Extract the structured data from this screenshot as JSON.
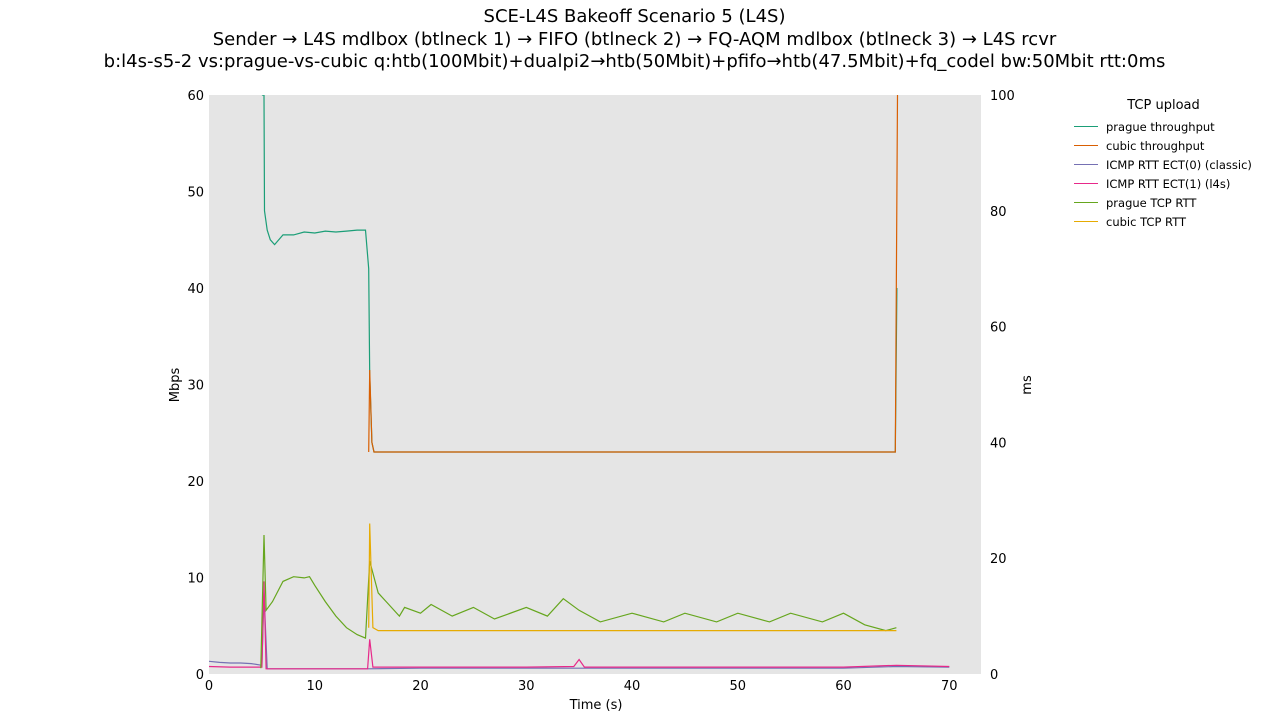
{
  "chart_data": {
    "type": "line",
    "title_lines": [
      "SCE-L4S Bakeoff Scenario 5 (L4S)",
      "Sender → L4S mdlbox (btlneck 1) → FIFO (btlneck 2) → FQ-AQM mdlbox (btlneck 3) → L4S rcvr",
      "b:l4s-s5-2 vs:prague-vs-cubic q:htb(100Mbit)+dualpi2→htb(50Mbit)+pfifo→htb(47.5Mbit)+fq_codel bw:50Mbit rtt:0ms"
    ],
    "xlabel": "Time (s)",
    "ylabel_left": "Mbps",
    "ylabel_right": "ms",
    "xlim": [
      0,
      73
    ],
    "ylim_left": [
      0,
      60
    ],
    "ylim_right": [
      0,
      100
    ],
    "xticks": [
      "0",
      "10",
      "20",
      "30",
      "40",
      "50",
      "60",
      "70"
    ],
    "yticks_left": [
      "0",
      "10",
      "20",
      "30",
      "40",
      "50",
      "60"
    ],
    "yticks_right": [
      "0",
      "20",
      "40",
      "60",
      "80",
      "100"
    ],
    "grid": false,
    "background": "#e5e5e5",
    "legend_title": "TCP upload",
    "legend_position": "outside-top-right",
    "series": [
      {
        "name": "prague throughput",
        "axis": "left",
        "color": "#1b9e77",
        "points": [
          [
            5.0,
            60
          ],
          [
            5.2,
            60
          ],
          [
            5.25,
            48
          ],
          [
            5.5,
            46
          ],
          [
            5.8,
            45
          ],
          [
            6.2,
            44.5
          ],
          [
            7,
            45.5
          ],
          [
            8,
            45.5
          ],
          [
            9,
            45.8
          ],
          [
            10,
            45.7
          ],
          [
            11,
            45.9
          ],
          [
            12,
            45.8
          ],
          [
            13,
            45.9
          ],
          [
            14,
            46
          ],
          [
            14.8,
            46
          ],
          [
            15.1,
            42
          ],
          [
            15.2,
            31
          ],
          [
            15.4,
            24
          ],
          [
            15.6,
            23
          ],
          [
            20,
            23
          ],
          [
            25,
            23
          ],
          [
            30,
            23
          ],
          [
            35,
            23
          ],
          [
            40,
            23
          ],
          [
            45,
            23
          ],
          [
            50,
            23
          ],
          [
            55,
            23
          ],
          [
            60,
            23
          ],
          [
            64.9,
            23
          ],
          [
            65.05,
            40
          ]
        ]
      },
      {
        "name": "cubic throughput",
        "axis": "left",
        "color": "#d95f02",
        "points": [
          [
            15.1,
            23
          ],
          [
            15.2,
            31.5
          ],
          [
            15.4,
            24
          ],
          [
            15.6,
            23
          ],
          [
            20,
            23
          ],
          [
            25,
            23
          ],
          [
            30,
            23
          ],
          [
            35,
            23
          ],
          [
            40,
            23
          ],
          [
            45,
            23
          ],
          [
            50,
            23
          ],
          [
            55,
            23
          ],
          [
            60,
            23
          ],
          [
            64.9,
            23
          ],
          [
            65.1,
            60
          ]
        ]
      },
      {
        "name": "ICMP RTT ECT(0) (classic)",
        "axis": "right",
        "color": "#7570b3",
        "points": [
          [
            0,
            2.2
          ],
          [
            1,
            2
          ],
          [
            2,
            1.9
          ],
          [
            3,
            1.9
          ],
          [
            4,
            1.8
          ],
          [
            5,
            1.5
          ],
          [
            5.2,
            14
          ],
          [
            5.5,
            0.9
          ],
          [
            10,
            0.9
          ],
          [
            15,
            0.9
          ],
          [
            20,
            1
          ],
          [
            30,
            1
          ],
          [
            40,
            1
          ],
          [
            50,
            1
          ],
          [
            60,
            1
          ],
          [
            65,
            1.3
          ],
          [
            70,
            1.2
          ]
        ]
      },
      {
        "name": "ICMP RTT ECT(1) (l4s)",
        "axis": "right",
        "color": "#e7298a",
        "points": [
          [
            0,
            1.3
          ],
          [
            2,
            1.2
          ],
          [
            4,
            1.2
          ],
          [
            5,
            1.2
          ],
          [
            5.2,
            16
          ],
          [
            5.4,
            0.9
          ],
          [
            10,
            0.9
          ],
          [
            15,
            0.9
          ],
          [
            15.2,
            6
          ],
          [
            15.5,
            1.2
          ],
          [
            20,
            1.2
          ],
          [
            30,
            1.2
          ],
          [
            34.5,
            1.3
          ],
          [
            35,
            2.5
          ],
          [
            35.5,
            1.2
          ],
          [
            40,
            1.2
          ],
          [
            50,
            1.2
          ],
          [
            60,
            1.2
          ],
          [
            65,
            1.5
          ],
          [
            70,
            1.3
          ]
        ]
      },
      {
        "name": "prague TCP RTT",
        "axis": "right",
        "color": "#66a61e",
        "points": [
          [
            4.9,
            1
          ],
          [
            5.2,
            24
          ],
          [
            5.4,
            11
          ],
          [
            6,
            12.5
          ],
          [
            7,
            16
          ],
          [
            8,
            16.8
          ],
          [
            9,
            16.6
          ],
          [
            9.5,
            16.8
          ],
          [
            10,
            15.3
          ],
          [
            11,
            12.5
          ],
          [
            12,
            10
          ],
          [
            13,
            8
          ],
          [
            14,
            6.8
          ],
          [
            14.8,
            6.2
          ],
          [
            15.2,
            19.5
          ],
          [
            16,
            14
          ],
          [
            17,
            12
          ],
          [
            18,
            10
          ],
          [
            18.5,
            11.5
          ],
          [
            20,
            10.5
          ],
          [
            21,
            12
          ],
          [
            23,
            10
          ],
          [
            25,
            11.5
          ],
          [
            27,
            9.5
          ],
          [
            30,
            11.5
          ],
          [
            32,
            10
          ],
          [
            33.5,
            13
          ],
          [
            35,
            11
          ],
          [
            37,
            9
          ],
          [
            40,
            10.5
          ],
          [
            43,
            9
          ],
          [
            45,
            10.5
          ],
          [
            48,
            9
          ],
          [
            50,
            10.5
          ],
          [
            53,
            9
          ],
          [
            55,
            10.5
          ],
          [
            58,
            9
          ],
          [
            60,
            10.5
          ],
          [
            62,
            8.5
          ],
          [
            64,
            7.5
          ],
          [
            65,
            8
          ]
        ]
      },
      {
        "name": "cubic TCP RTT",
        "axis": "right",
        "color": "#e6ab02",
        "points": [
          [
            15.1,
            8
          ],
          [
            15.2,
            26
          ],
          [
            15.5,
            8
          ],
          [
            16,
            7.5
          ],
          [
            20,
            7.5
          ],
          [
            25,
            7.5
          ],
          [
            30,
            7.5
          ],
          [
            35,
            7.5
          ],
          [
            40,
            7.5
          ],
          [
            45,
            7.5
          ],
          [
            50,
            7.5
          ],
          [
            55,
            7.5
          ],
          [
            60,
            7.5
          ],
          [
            65,
            7.5
          ]
        ]
      }
    ]
  }
}
